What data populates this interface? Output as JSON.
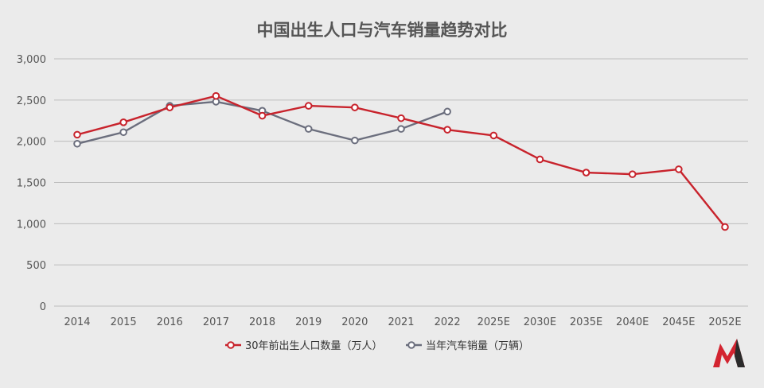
{
  "chart_data": {
    "type": "line",
    "title": "中国出生人口与汽车销量趋势对比",
    "categories": [
      "2014",
      "2015",
      "2016",
      "2017",
      "2018",
      "2019",
      "2020",
      "2021",
      "2022",
      "2025E",
      "2030E",
      "2035E",
      "2040E",
      "2045E",
      "2052E"
    ],
    "ylim": [
      0,
      3000
    ],
    "yticks": [
      "0",
      "500",
      "1,000",
      "1,500",
      "2,000",
      "2,500",
      "3,000"
    ],
    "grid": true,
    "legend_position": "bottom",
    "series": [
      {
        "name": "30年前出生人口数量（万人）",
        "color": "#c8232c",
        "values": [
          2080,
          2230,
          2410,
          2550,
          2310,
          2430,
          2410,
          2280,
          2140,
          2070,
          1780,
          1620,
          1600,
          1660,
          960
        ]
      },
      {
        "name": "当年汽车销量（万辆）",
        "color": "#6b6e7d",
        "values": [
          1970,
          2110,
          2430,
          2480,
          2370,
          2150,
          2010,
          2150,
          2360,
          null,
          null,
          null,
          null,
          null,
          null
        ]
      }
    ]
  },
  "logo": {
    "label": "M",
    "colors": [
      "#d32430",
      "#2b2b2b"
    ]
  }
}
